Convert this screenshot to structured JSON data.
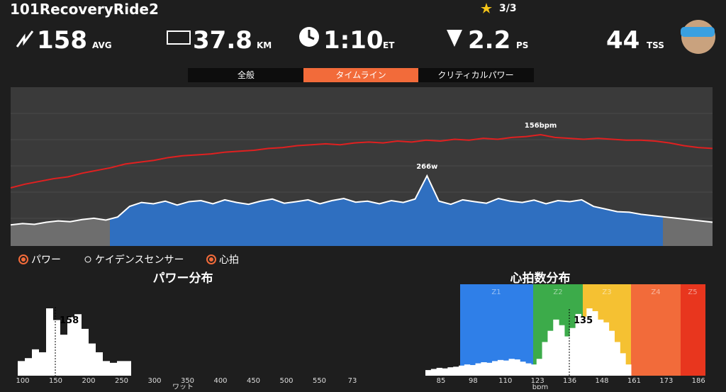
{
  "header": {
    "title": "101RecoveryRide2",
    "progress": "3/3",
    "stats": [
      {
        "value": "158",
        "unit": "AVG"
      },
      {
        "value": "37.8",
        "unit": "KM"
      },
      {
        "value": "1:10",
        "unit": "ET"
      },
      {
        "value": "2.2",
        "unit": "PS"
      },
      {
        "value": "44",
        "unit": "TSS"
      }
    ]
  },
  "tabs": [
    "全般",
    "タイムライン",
    "クリティカルパワー"
  ],
  "timeline": {
    "hr_label": "156bpm",
    "power_label": "266w",
    "heart_rate": [
      98,
      102,
      105,
      108,
      110,
      114,
      117,
      120,
      124,
      126,
      128,
      131,
      133,
      134,
      135,
      137,
      138,
      139,
      141,
      142,
      144,
      145,
      146,
      145,
      147,
      148,
      147,
      149,
      148,
      150,
      149,
      151,
      150,
      152,
      151,
      153,
      154,
      156,
      153,
      152,
      151,
      152,
      151,
      150,
      150,
      149,
      147,
      144,
      142,
      141
    ],
    "power": [
      80,
      85,
      82,
      90,
      95,
      92,
      100,
      105,
      98,
      110,
      150,
      165,
      160,
      170,
      155,
      168,
      172,
      160,
      175,
      165,
      158,
      170,
      178,
      162,
      168,
      175,
      160,
      172,
      180,
      166,
      170,
      160,
      172,
      165,
      178,
      266,
      170,
      158,
      175,
      168,
      162,
      180,
      170,
      165,
      174,
      160,
      172,
      168,
      175,
      150,
      140,
      130,
      128,
      120,
      115,
      110,
      105,
      100,
      95,
      90
    ]
  },
  "legend": [
    "パワー",
    "ケイデンスセンサー",
    "心拍"
  ],
  "power_distribution": {
    "title": "パワー分布",
    "average": "158",
    "x_label": "ワット",
    "x_ticks": [
      "100",
      "150",
      "200",
      "250",
      "300",
      "350",
      "400",
      "450",
      "500",
      "550",
      "73"
    ],
    "counts": [
      25,
      30,
      45,
      40,
      115,
      95,
      70,
      100,
      105,
      80,
      55,
      40,
      25,
      22,
      25,
      25
    ]
  },
  "hr_distribution": {
    "title": "心拍数分布",
    "average": "135",
    "x_label": "bpm",
    "zones": [
      "Z1",
      "Z2",
      "Z3",
      "Z4",
      "Z5"
    ],
    "x_ticks": [
      "85",
      "98",
      "110",
      "123",
      "136",
      "148",
      "161",
      "173",
      "186"
    ],
    "counts": [
      10,
      12,
      14,
      13,
      15,
      16,
      18,
      20,
      19,
      22,
      24,
      23,
      26,
      28,
      27,
      30,
      29,
      25,
      22,
      20,
      30,
      60,
      80,
      100,
      90,
      70,
      85,
      110,
      105,
      120,
      115,
      100,
      95,
      80,
      60,
      40,
      20
    ]
  }
}
